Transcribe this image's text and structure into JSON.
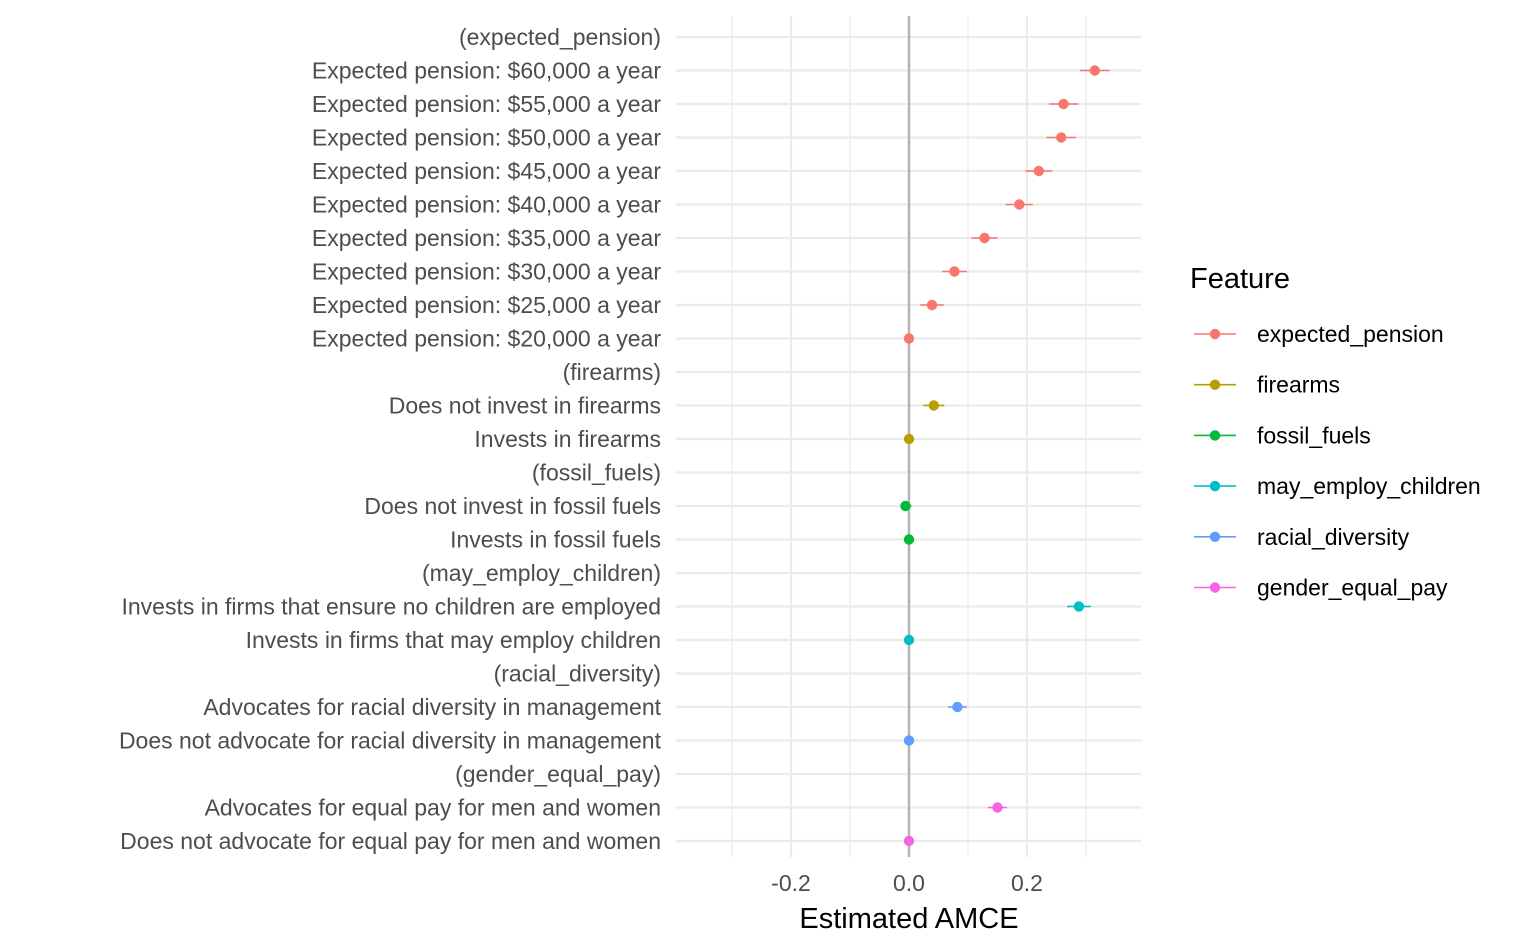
{
  "chart_data": {
    "type": "scatter",
    "xlabel": "Estimated AMCE",
    "ylabel": "",
    "xlim": [
      -0.39,
      0.39
    ],
    "x_ticks": [
      -0.2,
      0.0,
      0.2
    ],
    "x_tick_labels": [
      "-0.2",
      "0.0",
      "0.2"
    ],
    "grid": true,
    "legend": {
      "title": "Feature",
      "position": "right"
    },
    "colors": {
      "expected_pension": "#F8766D",
      "firearms": "#B79F00",
      "fossil_fuels": "#00BA38",
      "may_employ_children": "#00BFC4",
      "racial_diversity": "#619CFF",
      "gender_equal_pay": "#F564E3"
    },
    "features": [
      "expected_pension",
      "firearms",
      "fossil_fuels",
      "may_employ_children",
      "racial_diversity",
      "gender_equal_pay"
    ],
    "rows": [
      {
        "label": "(expected_pension)",
        "header": true,
        "feature": "expected_pension",
        "estimate": null,
        "lower": null,
        "upper": null
      },
      {
        "label": "Expected pension: $60,000 a year",
        "header": false,
        "feature": "expected_pension",
        "estimate": 0.315,
        "lower": 0.29,
        "upper": 0.34
      },
      {
        "label": "Expected pension: $55,000 a year",
        "header": false,
        "feature": "expected_pension",
        "estimate": 0.262,
        "lower": 0.237,
        "upper": 0.287
      },
      {
        "label": "Expected pension: $50,000 a year",
        "header": false,
        "feature": "expected_pension",
        "estimate": 0.258,
        "lower": 0.233,
        "upper": 0.283
      },
      {
        "label": "Expected pension: $45,000 a year",
        "header": false,
        "feature": "expected_pension",
        "estimate": 0.22,
        "lower": 0.197,
        "upper": 0.243
      },
      {
        "label": "Expected pension: $40,000 a year",
        "header": false,
        "feature": "expected_pension",
        "estimate": 0.187,
        "lower": 0.164,
        "upper": 0.21
      },
      {
        "label": "Expected pension: $35,000 a year",
        "header": false,
        "feature": "expected_pension",
        "estimate": 0.128,
        "lower": 0.106,
        "upper": 0.15
      },
      {
        "label": "Expected pension: $30,000 a year",
        "header": false,
        "feature": "expected_pension",
        "estimate": 0.077,
        "lower": 0.056,
        "upper": 0.098
      },
      {
        "label": "Expected pension: $25,000 a year",
        "header": false,
        "feature": "expected_pension",
        "estimate": 0.039,
        "lower": 0.019,
        "upper": 0.059
      },
      {
        "label": "Expected pension: $20,000 a year",
        "header": false,
        "feature": "expected_pension",
        "estimate": 0.0,
        "lower": 0.0,
        "upper": 0.0
      },
      {
        "label": "(firearms)",
        "header": true,
        "feature": "firearms",
        "estimate": null,
        "lower": null,
        "upper": null
      },
      {
        "label": "Does not invest in firearms",
        "header": false,
        "feature": "firearms",
        "estimate": 0.042,
        "lower": 0.024,
        "upper": 0.06
      },
      {
        "label": "Invests in firearms",
        "header": false,
        "feature": "firearms",
        "estimate": 0.0,
        "lower": 0.0,
        "upper": 0.0
      },
      {
        "label": "(fossil_fuels)",
        "header": true,
        "feature": "fossil_fuels",
        "estimate": null,
        "lower": null,
        "upper": null
      },
      {
        "label": "Does not invest in fossil fuels",
        "header": false,
        "feature": "fossil_fuels",
        "estimate": -0.006,
        "lower": -0.014,
        "upper": 0.004
      },
      {
        "label": "Invests in fossil fuels",
        "header": false,
        "feature": "fossil_fuels",
        "estimate": 0.0,
        "lower": 0.0,
        "upper": 0.0
      },
      {
        "label": "(may_employ_children)",
        "header": true,
        "feature": "may_employ_children",
        "estimate": null,
        "lower": null,
        "upper": null
      },
      {
        "label": "Invests in firms that ensure no children are employed",
        "header": false,
        "feature": "may_employ_children",
        "estimate": 0.288,
        "lower": 0.268,
        "upper": 0.308
      },
      {
        "label": "Invests in firms that may employ children",
        "header": false,
        "feature": "may_employ_children",
        "estimate": 0.0,
        "lower": 0.0,
        "upper": 0.0
      },
      {
        "label": "(racial_diversity)",
        "header": true,
        "feature": "racial_diversity",
        "estimate": null,
        "lower": null,
        "upper": null
      },
      {
        "label": "Advocates for racial diversity in management",
        "header": false,
        "feature": "racial_diversity",
        "estimate": 0.082,
        "lower": 0.066,
        "upper": 0.098
      },
      {
        "label": "Does not advocate for racial diversity in management",
        "header": false,
        "feature": "racial_diversity",
        "estimate": 0.0,
        "lower": 0.0,
        "upper": 0.0
      },
      {
        "label": "(gender_equal_pay)",
        "header": true,
        "feature": "gender_equal_pay",
        "estimate": null,
        "lower": null,
        "upper": null
      },
      {
        "label": "Advocates for equal pay for men and women",
        "header": false,
        "feature": "gender_equal_pay",
        "estimate": 0.15,
        "lower": 0.134,
        "upper": 0.166
      },
      {
        "label": "Does not advocate for equal pay for men and women",
        "header": false,
        "feature": "gender_equal_pay",
        "estimate": 0.0,
        "lower": 0.0,
        "upper": 0.0
      }
    ]
  }
}
